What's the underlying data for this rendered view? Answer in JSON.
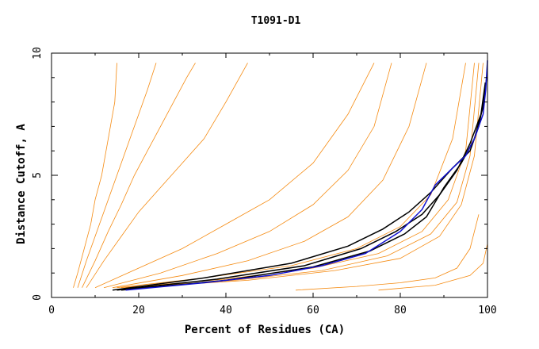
{
  "chart_data": {
    "type": "line",
    "title": "T1091-D1",
    "xlabel": "Percent of Residues (CA)",
    "ylabel": "Distance Cutoff, A",
    "xlim": [
      0,
      100
    ],
    "ylim": [
      0,
      10
    ],
    "x_ticks": [
      "0",
      "20",
      "40",
      "60",
      "80",
      "100"
    ],
    "y_ticks": [
      "0",
      "5",
      "10"
    ],
    "grid": false,
    "colors": {
      "bulk": "#f58a10",
      "highlight": "#000000",
      "best": "#1010d0"
    },
    "series": [
      {
        "group": "bulk-steep",
        "x": [
          5,
          6,
          7.5,
          9,
          10,
          11.5,
          12.5,
          13.5,
          14.5,
          15
        ],
        "y": [
          0.4,
          1,
          2,
          3,
          4,
          5,
          6,
          7,
          8,
          9.6
        ]
      },
      {
        "group": "bulk-steep",
        "x": [
          6,
          8,
          10,
          12,
          14,
          16,
          18,
          20,
          22,
          24
        ],
        "y": [
          0.4,
          1.5,
          2.5,
          3.5,
          4.5,
          5.5,
          6.5,
          7.5,
          8.5,
          9.6
        ]
      },
      {
        "group": "bulk-steep",
        "x": [
          7,
          10,
          13,
          16,
          19,
          22,
          25,
          28,
          31,
          33
        ],
        "y": [
          0.4,
          1.5,
          2.7,
          3.8,
          5,
          6,
          7,
          8,
          9,
          9.6
        ]
      },
      {
        "group": "bulk-steep",
        "x": [
          8,
          12,
          16,
          20,
          25,
          30,
          35,
          40,
          45
        ],
        "y": [
          0.4,
          1.5,
          2.5,
          3.5,
          4.5,
          5.5,
          6.5,
          8,
          9.6
        ]
      },
      {
        "group": "bulk-mid",
        "x": [
          10,
          20,
          30,
          40,
          50,
          60,
          68,
          74
        ],
        "y": [
          0.4,
          1.2,
          2,
          3,
          4,
          5.5,
          7.5,
          9.6
        ]
      },
      {
        "group": "bulk-mid",
        "x": [
          12,
          25,
          38,
          50,
          60,
          68,
          74,
          78
        ],
        "y": [
          0.4,
          1,
          1.8,
          2.7,
          3.8,
          5.2,
          7,
          9.6
        ]
      },
      {
        "group": "bulk-mid",
        "x": [
          14,
          30,
          45,
          58,
          68,
          76,
          82,
          86
        ],
        "y": [
          0.4,
          0.9,
          1.5,
          2.3,
          3.3,
          4.8,
          7,
          9.6
        ]
      },
      {
        "group": "bulk-main",
        "x": [
          15,
          35,
          55,
          70,
          80,
          87,
          92,
          95
        ],
        "y": [
          0.4,
          0.8,
          1.3,
          2,
          2.9,
          4.2,
          6.5,
          9.6
        ]
      },
      {
        "group": "bulk-main",
        "x": [
          16,
          40,
          60,
          75,
          85,
          91,
          95,
          97
        ],
        "y": [
          0.4,
          0.75,
          1.2,
          1.8,
          2.7,
          4,
          6,
          9.6
        ]
      },
      {
        "group": "bulk-main",
        "x": [
          17,
          42,
          62,
          77,
          87,
          93,
          96,
          98
        ],
        "y": [
          0.4,
          0.7,
          1.1,
          1.7,
          2.6,
          3.9,
          5.8,
          9.6
        ]
      },
      {
        "group": "bulk-main",
        "x": [
          18,
          45,
          65,
          80,
          89,
          94,
          97,
          99
        ],
        "y": [
          0.4,
          0.7,
          1.1,
          1.6,
          2.5,
          3.8,
          5.8,
          9.6
        ]
      },
      {
        "group": "bulk-low",
        "x": [
          56,
          70,
          80,
          88,
          93,
          96,
          98
        ],
        "y": [
          0.3,
          0.45,
          0.6,
          0.8,
          1.2,
          2,
          3.4
        ]
      },
      {
        "group": "bulk-low",
        "x": [
          75,
          88,
          96,
          99,
          100
        ],
        "y": [
          0.3,
          0.5,
          0.9,
          1.4,
          2.2
        ]
      },
      {
        "group": "highlight",
        "x": [
          14,
          35,
          55,
          68,
          76,
          82,
          87,
          92,
          96,
          98,
          99.5
        ],
        "y": [
          0.3,
          0.8,
          1.4,
          2.1,
          2.8,
          3.5,
          4.3,
          5.3,
          6,
          7,
          8.4
        ]
      },
      {
        "group": "highlight",
        "x": [
          15,
          38,
          58,
          71,
          79,
          85,
          89,
          93,
          96,
          98.5,
          99.5
        ],
        "y": [
          0.3,
          0.75,
          1.3,
          2,
          2.7,
          3.4,
          4.2,
          5.2,
          6.3,
          7.5,
          8.8
        ]
      },
      {
        "group": "highlight",
        "x": [
          16,
          40,
          60,
          73,
          81,
          86,
          90,
          94,
          97,
          99,
          99.8
        ],
        "y": [
          0.3,
          0.7,
          1.25,
          1.9,
          2.6,
          3.3,
          4.5,
          5.5,
          6.5,
          7.8,
          9
        ]
      },
      {
        "group": "best",
        "x": [
          17,
          35,
          50,
          62,
          72,
          80,
          85,
          88,
          92,
          95,
          97,
          99,
          99.6,
          100
        ],
        "y": [
          0.3,
          0.6,
          0.9,
          1.3,
          1.8,
          2.7,
          3.6,
          4.6,
          5.3,
          5.8,
          6.5,
          7.5,
          8.5,
          9.7
        ]
      }
    ]
  }
}
